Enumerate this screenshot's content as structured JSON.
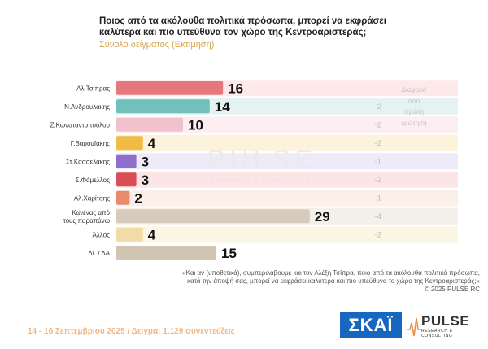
{
  "title_lines": [
    "Ποιος από τα ακόλουθα πολιτικά πρόσωπα, μπορεί να εκφράσει",
    "καλύτερα και πιο υπεύθυνα τον χώρο της Κεντροαριστεράς;"
  ],
  "subtitle": "Σύνολο δείγματος   (Εκτίμηση)",
  "diff_header": [
    "Διαφορά",
    "από",
    "πρώτη",
    "ερώτηση"
  ],
  "watermark": {
    "name": "PULSE",
    "tagline": "RESEARCH & CONSULTING"
  },
  "chart_data": {
    "type": "bar",
    "orientation": "horizontal",
    "categories": [
      [
        "Αλ.Τσίπρας"
      ],
      [
        "Ν.Ανδρουλάκης"
      ],
      [
        "Ζ.Κωνσταντοπούλου"
      ],
      [
        "Γ.Βαροufάκης"
      ],
      [
        "Στ.Κασσελάκης"
      ],
      [
        "Σ.Φάμελλος"
      ],
      [
        "Αλ.Χαρίτσης"
      ],
      [
        "Κανένας από",
        "τους παραπάνω"
      ],
      [
        "Άλλος"
      ],
      [
        "ΔΓ / ΔΑ"
      ]
    ],
    "values": [
      16,
      14,
      10,
      4,
      3,
      3,
      2,
      29,
      4,
      15
    ],
    "differences": [
      "",
      "-2",
      "-2",
      "-2",
      "-1",
      "-2",
      "-1",
      "-4",
      "-2",
      ""
    ],
    "colors": [
      "#e6787d",
      "#72c0bc",
      "#f2c2cc",
      "#f2bb45",
      "#8f6fce",
      "#d94e56",
      "#ea8a6c",
      "#d7cbbd",
      "#f1dca6",
      "#d1c4b3"
    ],
    "row_backgrounds": [
      "#fde8ea",
      "#e4f2f1",
      "#fdeff1",
      "#fdf3dc",
      "#efeaf8",
      "#fbe5e7",
      "#fceee8",
      "#f3efe9",
      "#fbf5e3",
      "#ffffff"
    ],
    "xlim": [
      0,
      30
    ]
  },
  "footnote_lines": [
    "«Και αν (υποθετικά), συμπεριλάβουμε και τον Αλέξη Τσίπρα, ποιο από τα ακόλουθα πολιτικά πρόσωπα,",
    "κατά την άποψή σας, μπορεί να εκφράσει καλύτερα και πιο υπεύθυνα το χώρο της Κεντροαριστεράς;»",
    "©  2025  PULSE RC"
  ],
  "footer": "14 - 16 Σεπτεμβρίου 2025  /  Δείγμα:  1.129 συνεντεύξεις",
  "logos": {
    "skai": "ΣΚΑΪ",
    "pulse": "PULSE",
    "pulse_tagline": "RESEARCH & CONSULTING"
  }
}
